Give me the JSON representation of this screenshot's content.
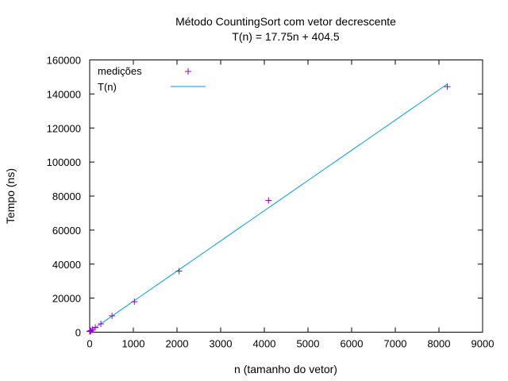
{
  "chart_data": {
    "type": "scatter",
    "title": "Método CountingSort com vetor decrescente",
    "subtitle": "T(n) = 17.75n + 404.5",
    "xlabel": "n (tamanho do vetor)",
    "ylabel": "Tempo (ns)",
    "xlim": [
      0,
      9000
    ],
    "ylim": [
      0,
      160000
    ],
    "x_ticks": [
      "0",
      "1000",
      "2000",
      "3000",
      "4000",
      "5000",
      "6000",
      "7000",
      "8000",
      "9000"
    ],
    "y_ticks": [
      "0",
      "20000",
      "40000",
      "60000",
      "80000",
      "100000",
      "120000",
      "140000",
      "160000"
    ],
    "grid": false,
    "legend_position": "top-left",
    "series": [
      {
        "name": "medições",
        "kind": "points",
        "marker": "plus",
        "color": "#9400d3",
        "x": [
          1,
          2,
          4,
          8,
          16,
          32,
          64,
          128,
          256,
          512,
          1024,
          2048,
          4096,
          8192
        ],
        "y": [
          400,
          450,
          500,
          550,
          700,
          1000,
          1600,
          2800,
          4900,
          9600,
          17900,
          35900,
          77400,
          144300
        ]
      },
      {
        "name": "T(n)",
        "kind": "line",
        "color": "#009edf",
        "function": {
          "slope": 17.75,
          "intercept": 404.5
        },
        "x_range": [
          0,
          8192
        ]
      }
    ]
  }
}
